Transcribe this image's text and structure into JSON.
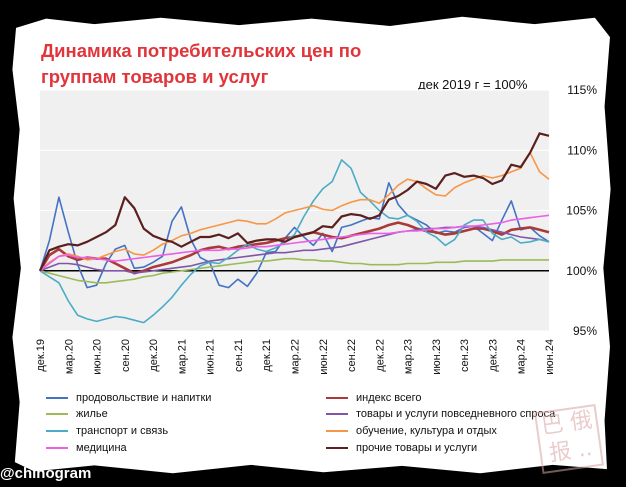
{
  "header": {
    "title": "Динамика потребительских цен по\nгруппам товаров и услуг",
    "base_note": "дек 2019 г = 100%"
  },
  "credit": "@chinogram",
  "chart_data": {
    "type": "line",
    "title": "Динамика потребительских цен по группам товаров и услуг",
    "ylabel": "дек 2019 г = 100%",
    "ylim": [
      95,
      115
    ],
    "y_ticks": [
      "95%",
      "100%",
      "105%",
      "110%",
      "115%"
    ],
    "y_tick_values": [
      95,
      100,
      105,
      110,
      115
    ],
    "x_tick_labels": [
      "дек.19",
      "мар.20",
      "июн.20",
      "сен.20",
      "дек.20",
      "мар.21",
      "июн.21",
      "сен.21",
      "дек.21",
      "мар.22",
      "июн.22",
      "сен.22",
      "дек.22",
      "мар.23",
      "июн.23",
      "сен.23",
      "дек.23",
      "мар.24",
      "июн.24"
    ],
    "x_count": 55,
    "series": [
      {
        "name": "продовольствие и напитки",
        "color": "#4472c4",
        "width": 1.6,
        "values": [
          100.0,
          102.5,
          106.1,
          103.2,
          100.5,
          98.6,
          98.8,
          100.6,
          101.8,
          102.1,
          100.2,
          100.3,
          100.7,
          101.2,
          104.1,
          105.3,
          102.6,
          101.1,
          100.7,
          98.8,
          98.6,
          99.3,
          98.7,
          99.8,
          101.5,
          101.6,
          102.7,
          103.6,
          102.8,
          102.1,
          103.1,
          101.6,
          103.6,
          103.8,
          104.1,
          104.4,
          104.3,
          107.3,
          105.5,
          104.6,
          104.2,
          103.8,
          103.1,
          103.3,
          103.2,
          103.6,
          103.7,
          103.1,
          102.5,
          104.2,
          105.8,
          103.4,
          103.6,
          102.9,
          102.4
        ]
      },
      {
        "name": "индекс всего",
        "color": "#a83a3a",
        "width": 2.6,
        "values": [
          100.0,
          101.3,
          101.8,
          101.2,
          100.9,
          101.1,
          101.0,
          101.0,
          100.6,
          100.2,
          99.8,
          100.0,
          100.3,
          100.5,
          100.7,
          101.0,
          101.3,
          101.7,
          101.9,
          102.0,
          101.8,
          102.0,
          102.1,
          102.2,
          102.3,
          102.5,
          102.7,
          102.8,
          103.0,
          103.2,
          103.0,
          102.8,
          102.7,
          102.9,
          103.1,
          103.3,
          103.5,
          103.8,
          104.0,
          103.8,
          103.5,
          103.3,
          103.2,
          103.0,
          103.1,
          103.3,
          103.5,
          103.5,
          103.3,
          103.0,
          103.4,
          103.5,
          103.6,
          103.4,
          103.2
        ]
      },
      {
        "name": "жилье",
        "color": "#9bbb59",
        "width": 1.6,
        "values": [
          100.0,
          99.8,
          99.6,
          99.4,
          99.2,
          99.1,
          99.0,
          99.0,
          99.1,
          99.2,
          99.3,
          99.5,
          99.6,
          99.8,
          99.9,
          100.0,
          100.1,
          100.2,
          100.3,
          100.4,
          100.5,
          100.6,
          100.7,
          100.8,
          100.8,
          100.9,
          101.0,
          101.0,
          100.9,
          100.9,
          100.8,
          100.8,
          100.7,
          100.6,
          100.6,
          100.5,
          100.5,
          100.5,
          100.5,
          100.6,
          100.6,
          100.6,
          100.7,
          100.7,
          100.7,
          100.8,
          100.8,
          100.8,
          100.8,
          100.9,
          100.9,
          100.9,
          100.9,
          100.9,
          100.9
        ]
      },
      {
        "name": "товары и услуги повседневного спроса",
        "color": "#7f56a8",
        "width": 1.6,
        "values": [
          100.0,
          100.3,
          100.6,
          100.6,
          100.5,
          100.3,
          100.1,
          100.0,
          100.0,
          100.0,
          99.8,
          99.9,
          100.0,
          100.1,
          100.2,
          100.3,
          100.4,
          100.6,
          100.8,
          100.9,
          101.0,
          101.1,
          101.2,
          101.3,
          101.4,
          101.5,
          101.5,
          101.6,
          101.7,
          101.7,
          101.8,
          101.9,
          102.0,
          102.2,
          102.4,
          102.6,
          102.8,
          103.0,
          103.2,
          103.3,
          103.4,
          103.5,
          103.5,
          103.6,
          103.6,
          103.7,
          103.7,
          103.6,
          103.4,
          103.2,
          103.0,
          102.8,
          102.7,
          102.6,
          102.4
        ]
      },
      {
        "name": "транспорт и связь",
        "color": "#4bacc6",
        "width": 1.6,
        "values": [
          100.0,
          99.5,
          99.0,
          97.5,
          96.3,
          96.0,
          95.8,
          96.0,
          96.2,
          96.1,
          95.9,
          95.7,
          96.3,
          97.0,
          97.8,
          98.8,
          99.7,
          100.4,
          100.7,
          100.6,
          101.1,
          101.7,
          102.2,
          101.8,
          101.6,
          101.9,
          102.4,
          103.0,
          104.5,
          105.8,
          106.8,
          107.4,
          109.2,
          108.5,
          106.5,
          105.8,
          105.0,
          104.4,
          104.3,
          104.6,
          104.1,
          103.2,
          102.8,
          102.1,
          102.6,
          103.8,
          104.2,
          104.2,
          103.1,
          102.6,
          102.8,
          102.3,
          102.4,
          102.6,
          102.4
        ]
      },
      {
        "name": "обучение, культура и отдых",
        "color": "#f79646",
        "width": 1.6,
        "values": [
          100.0,
          100.7,
          101.2,
          101.4,
          101.2,
          100.9,
          101.0,
          101.3,
          101.6,
          101.8,
          101.4,
          101.3,
          101.7,
          102.2,
          102.5,
          102.9,
          103.1,
          103.4,
          103.6,
          103.8,
          104.0,
          104.2,
          104.1,
          103.9,
          103.9,
          104.3,
          104.8,
          105.0,
          105.2,
          105.4,
          105.1,
          105.0,
          105.4,
          105.7,
          105.9,
          105.9,
          105.6,
          106.3,
          107.1,
          107.6,
          107.4,
          106.8,
          106.3,
          106.2,
          106.9,
          107.3,
          107.6,
          107.9,
          107.7,
          107.9,
          108.2,
          108.5,
          109.8,
          108.2,
          107.6
        ]
      },
      {
        "name": "медицина",
        "color": "#ee5ee9",
        "width": 1.6,
        "values": [
          100.0,
          100.6,
          101.2,
          101.3,
          101.1,
          101.1,
          101.0,
          100.9,
          100.8,
          100.9,
          101.0,
          101.1,
          101.2,
          101.3,
          101.4,
          101.5,
          101.6,
          101.7,
          101.7,
          101.7,
          101.8,
          101.8,
          101.9,
          102.0,
          102.0,
          102.1,
          102.2,
          102.3,
          102.4,
          102.5,
          102.6,
          102.7,
          102.8,
          102.9,
          103.0,
          103.1,
          103.1,
          103.1,
          103.2,
          103.3,
          103.3,
          103.4,
          103.5,
          103.5,
          103.6,
          103.7,
          103.7,
          103.8,
          103.9,
          104.0,
          104.2,
          104.3,
          104.4,
          104.5,
          104.6
        ]
      },
      {
        "name": "прочие товары и услуги",
        "color": "#5b1f1f",
        "width": 2.2,
        "values": [
          100.0,
          101.7,
          102.0,
          102.2,
          102.1,
          102.4,
          102.8,
          103.2,
          103.8,
          106.1,
          105.2,
          103.5,
          102.9,
          102.6,
          102.4,
          102.0,
          102.4,
          102.8,
          102.8,
          103.0,
          102.7,
          103.1,
          102.3,
          102.5,
          102.6,
          102.6,
          102.4,
          102.8,
          103.0,
          103.2,
          103.7,
          103.6,
          104.5,
          104.7,
          104.6,
          104.3,
          104.6,
          105.9,
          106.2,
          106.7,
          107.4,
          107.2,
          106.8,
          107.9,
          108.1,
          107.8,
          107.9,
          107.7,
          107.2,
          107.5,
          108.8,
          108.6,
          109.8,
          111.4,
          111.2
        ]
      }
    ]
  },
  "legend": {
    "items": [
      {
        "label": "продовольствие и напитки",
        "color": "#4472c4"
      },
      {
        "label": "индекс всего",
        "color": "#a83a3a"
      },
      {
        "label": "жилье",
        "color": "#9bbb59"
      },
      {
        "label": "товары и услуги повседневного спроса",
        "color": "#7f56a8"
      },
      {
        "label": "транспорт и связь",
        "color": "#4bacc6"
      },
      {
        "label": "обучение, культура и отдых",
        "color": "#f79646"
      },
      {
        "label": "медицина",
        "color": "#ee5ee9"
      },
      {
        "label": "прочие товары и услуги",
        "color": "#5b1f1f"
      }
    ]
  }
}
